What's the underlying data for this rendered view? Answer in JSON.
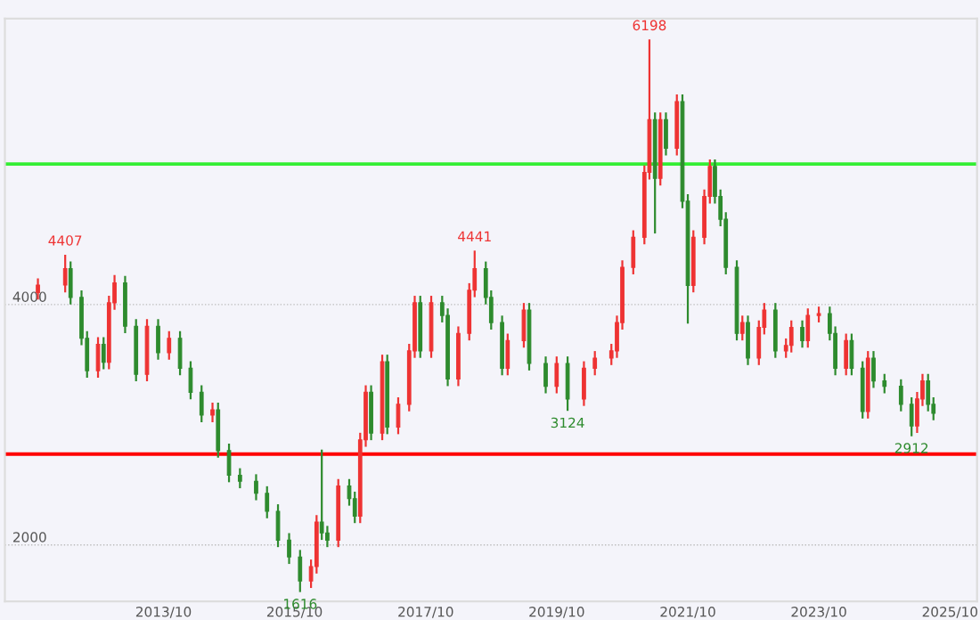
{
  "chart_data": {
    "type": "candlestick",
    "x": [
      "2011-11",
      "2012-04",
      "2012-05",
      "2012-07",
      "2012-08",
      "2012-10",
      "2012-11",
      "2012-12",
      "2013-01",
      "2013-03",
      "2013-05",
      "2013-07",
      "2013-09",
      "2013-11",
      "2014-01",
      "2014-03",
      "2014-05",
      "2014-07",
      "2014-08",
      "2014-10",
      "2014-12",
      "2015-03",
      "2015-05",
      "2015-07",
      "2015-09",
      "2015-11",
      "2016-01",
      "2016-02",
      "2016-03",
      "2016-04",
      "2016-06",
      "2016-08",
      "2016-09",
      "2016-10",
      "2016-11",
      "2016-12",
      "2017-02",
      "2017-03",
      "2017-05",
      "2017-07",
      "2017-08",
      "2017-09",
      "2017-11",
      "2018-01",
      "2018-02",
      "2018-04",
      "2018-06",
      "2018-07",
      "2018-09",
      "2018-10",
      "2018-12",
      "2019-01",
      "2019-04",
      "2019-05",
      "2019-08",
      "2019-10",
      "2019-12",
      "2020-03",
      "2020-05",
      "2020-08",
      "2020-09",
      "2020-10",
      "2020-12",
      "2021-02",
      "2021-03",
      "2021-04",
      "2021-05",
      "2021-06",
      "2021-08",
      "2021-09",
      "2021-10",
      "2021-11",
      "2022-01",
      "2022-02",
      "2022-03",
      "2022-04",
      "2022-05",
      "2022-07",
      "2022-08",
      "2022-09",
      "2022-11",
      "2022-12",
      "2023-02",
      "2023-04",
      "2023-05",
      "2023-07",
      "2023-08",
      "2023-10",
      "2023-12",
      "2024-01",
      "2024-03",
      "2024-04",
      "2024-06",
      "2024-07",
      "2024-08",
      "2024-10",
      "2025-01",
      "2025-03",
      "2025-04",
      "2025-05",
      "2025-06",
      "2025-07"
    ],
    "ohlc": [
      [
        4100,
        4210,
        4050,
        4163
      ],
      [
        4163,
        4407,
        4110,
        4300
      ],
      [
        4300,
        4350,
        4010,
        4060
      ],
      [
        4060,
        4110,
        3670,
        3720
      ],
      [
        3720,
        3770,
        3400,
        3450
      ],
      [
        3450,
        3720,
        3400,
        3670
      ],
      [
        3670,
        3720,
        3470,
        3520
      ],
      [
        3520,
        4065,
        3470,
        4015
      ],
      [
        4015,
        4237,
        3965,
        4180
      ],
      [
        4180,
        4230,
        3770,
        3820
      ],
      [
        3820,
        3870,
        3370,
        3420
      ],
      [
        3420,
        3870,
        3370,
        3820
      ],
      [
        3820,
        3870,
        3550,
        3600
      ],
      [
        3600,
        3770,
        3550,
        3720
      ],
      [
        3720,
        3770,
        3420,
        3470
      ],
      [
        3470,
        3520,
        3220,
        3270
      ],
      [
        3270,
        3320,
        3030,
        3080
      ],
      [
        3080,
        3175,
        3030,
        3125
      ],
      [
        3125,
        3175,
        2735,
        2785
      ],
      [
        2785,
        2835,
        2530,
        2580
      ],
      [
        2580,
        2630,
        2480,
        2530
      ],
      [
        2530,
        2580,
        2380,
        2430
      ],
      [
        2430,
        2480,
        2230,
        2280
      ],
      [
        2280,
        2330,
        1990,
        2040
      ],
      [
        2040,
        2090,
        1850,
        1900
      ],
      [
        1900,
        1950,
        1616,
        1700
      ],
      [
        1700,
        1870,
        1650,
        1820
      ],
      [
        1820,
        2240,
        1770,
        2190
      ],
      [
        2190,
        2785,
        2050,
        2100
      ],
      [
        2100,
        2150,
        1990,
        2040
      ],
      [
        2040,
        2540,
        1990,
        2490
      ],
      [
        2490,
        2540,
        2335,
        2385
      ],
      [
        2385,
        2435,
        2190,
        2240
      ],
      [
        2240,
        2925,
        2190,
        2875
      ],
      [
        2875,
        3320,
        2825,
        3270
      ],
      [
        3270,
        3320,
        2880,
        2930
      ],
      [
        2930,
        3575,
        2880,
        3525
      ],
      [
        3525,
        3575,
        2930,
        2980
      ],
      [
        2980,
        3220,
        2930,
        3170
      ],
      [
        3170,
        3665,
        3120,
        3615
      ],
      [
        3615,
        4065,
        3565,
        4015
      ],
      [
        4015,
        4065,
        3565,
        3615
      ],
      [
        3615,
        4065,
        3565,
        4015
      ],
      [
        4015,
        4065,
        3860,
        3910
      ],
      [
        3910,
        3960,
        3330,
        3380
      ],
      [
        3380,
        3810,
        3330,
        3760
      ],
      [
        3760,
        4170,
        3710,
        4120
      ],
      [
        4120,
        4441,
        4070,
        4300
      ],
      [
        4300,
        4350,
        4010,
        4060
      ],
      [
        4060,
        4110,
        3800,
        3850
      ],
      [
        3850,
        3900,
        3420,
        3470
      ],
      [
        3470,
        3750,
        3420,
        3700
      ],
      [
        3700,
        4005,
        3650,
        3955
      ],
      [
        3955,
        4005,
        3460,
        3510
      ],
      [
        3510,
        3560,
        3270,
        3320
      ],
      [
        3320,
        3560,
        3270,
        3510
      ],
      [
        3510,
        3560,
        3124,
        3215
      ],
      [
        3215,
        3520,
        3165,
        3470
      ],
      [
        3470,
        3605,
        3420,
        3555
      ],
      [
        3555,
        3665,
        3505,
        3615
      ],
      [
        3615,
        3900,
        3565,
        3850
      ],
      [
        3850,
        4360,
        3800,
        4310
      ],
      [
        4310,
        4610,
        4260,
        4560
      ],
      [
        4560,
        5150,
        4510,
        5100
      ],
      [
        5100,
        6198,
        5050,
        5540
      ],
      [
        5540,
        5590,
        4600,
        5050
      ],
      [
        5050,
        5590,
        5000,
        5540
      ],
      [
        5540,
        5590,
        5250,
        5300
      ],
      [
        5300,
        5740,
        5250,
        5690
      ],
      [
        5690,
        5740,
        4810,
        4860
      ],
      [
        4860,
        4910,
        3850,
        4160
      ],
      [
        4160,
        4610,
        4110,
        4560
      ],
      [
        4560,
        4950,
        4510,
        4900
      ],
      [
        4900,
        5200,
        4850,
        5150
      ],
      [
        5150,
        5200,
        4850,
        4900
      ],
      [
        4900,
        4950,
        4660,
        4710
      ],
      [
        4710,
        4760,
        4260,
        4310
      ],
      [
        4310,
        4360,
        3710,
        3760
      ],
      [
        3760,
        3900,
        3710,
        3850
      ],
      [
        3850,
        3900,
        3505,
        3555
      ],
      [
        3555,
        3860,
        3505,
        3810
      ],
      [
        3810,
        4005,
        3760,
        3955
      ],
      [
        3955,
        4005,
        3565,
        3615
      ],
      [
        3615,
        3710,
        3565,
        3660
      ],
      [
        3660,
        3860,
        3610,
        3810
      ],
      [
        3810,
        3860,
        3650,
        3700
      ],
      [
        3700,
        3960,
        3650,
        3910
      ],
      [
        3910,
        3975,
        3860,
        3925
      ],
      [
        3925,
        3975,
        3710,
        3760
      ],
      [
        3760,
        3810,
        3420,
        3470
      ],
      [
        3470,
        3750,
        3420,
        3700
      ],
      [
        3700,
        3750,
        3420,
        3470
      ],
      [
        3470,
        3520,
        3060,
        3110
      ],
      [
        3110,
        3605,
        3060,
        3555
      ],
      [
        3555,
        3605,
        3315,
        3365
      ],
      [
        3365,
        3415,
        3270,
        3320
      ],
      [
        3320,
        3370,
        3120,
        3170
      ],
      [
        3170,
        3220,
        2912,
        2990
      ],
      [
        2990,
        3265,
        2940,
        3215
      ],
      [
        3215,
        3415,
        3165,
        3365
      ],
      [
        3365,
        3415,
        3120,
        3170
      ],
      [
        3170,
        3220,
        3045,
        3095
      ]
    ],
    "xlim": [
      "2011-05",
      "2026-03"
    ],
    "xticks": [
      {
        "value": "2013-10",
        "label": "2013/10"
      },
      {
        "value": "2015-10",
        "label": "2015/10"
      },
      {
        "value": "2017-10",
        "label": "2017/10"
      },
      {
        "value": "2019-10",
        "label": "2019/10"
      },
      {
        "value": "2021-10",
        "label": "2021/10"
      },
      {
        "value": "2023-10",
        "label": "2023/10"
      },
      {
        "value": "2025-10",
        "label": "2025/10"
      }
    ],
    "ylim": [
      1530,
      6380
    ],
    "yticks": [
      2000,
      4000
    ],
    "grid": "y",
    "ref_lines": [
      {
        "axis": "y",
        "value": 2756,
        "color": "#ff0000"
      },
      {
        "axis": "y",
        "value": 5170,
        "color": "#33ee33"
      }
    ],
    "annotations": [
      {
        "text": "4407",
        "x": "2012-04",
        "y": 4407
      },
      {
        "text": "1616",
        "x": "2015-11",
        "y": 1616
      },
      {
        "text": "4441",
        "x": "2018-07",
        "y": 4441
      },
      {
        "text": "3124",
        "x": "2019-12",
        "y": 3124
      },
      {
        "text": "6198",
        "x": "2021-03",
        "y": 6198
      },
      {
        "text": "2912",
        "x": "2025-03",
        "y": 2912
      }
    ]
  }
}
